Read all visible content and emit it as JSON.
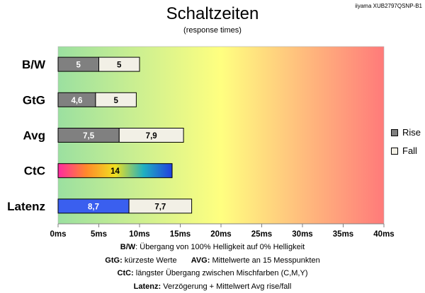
{
  "model": "iiyama XUB2797QSNP-B1",
  "colors": {
    "rise": "#808080",
    "fall": "#f2f0e6",
    "latency_rise": "#3a5fef",
    "background_gradient": [
      "#9be0a0",
      "#ffff80",
      "#ff7a7a"
    ],
    "ctc_gradient": [
      "#ff2aa0",
      "#ff8a2a",
      "#f0e020",
      "#20b0c0",
      "#2040e0"
    ]
  },
  "chart_data": {
    "type": "bar",
    "orientation": "horizontal",
    "stacked": true,
    "title": "Schaltzeiten",
    "subtitle": "(response times)",
    "categories": [
      "B/W",
      "GtG",
      "Avg",
      "CtC",
      "Latenz"
    ],
    "series": [
      {
        "name": "Rise",
        "values": [
          5,
          4.6,
          7.5,
          null,
          8.7
        ],
        "labels": [
          "5",
          "4,6",
          "7,5",
          "",
          "8,7"
        ]
      },
      {
        "name": "Fall",
        "values": [
          5,
          5,
          7.9,
          null,
          7.7
        ],
        "labels": [
          "5",
          "5",
          "7,9",
          "",
          "7,7"
        ]
      }
    ],
    "single": {
      "category": "CtC",
      "value": 14,
      "label": "14"
    },
    "xlim": [
      0,
      40
    ],
    "xticks": [
      "0ms",
      "5ms",
      "10ms",
      "15ms",
      "20ms",
      "25ms",
      "30ms",
      "35ms",
      "40ms"
    ],
    "legend": "right",
    "grid": false
  },
  "footnotes": [
    [
      {
        "bold": "B/W",
        "text": ":  Übergang von 100% Helligkeit auf 0% Helligkeit"
      }
    ],
    [
      {
        "bold": "GtG:",
        "text": " kürzeste  Werte"
      },
      {
        "bold": "AVG:",
        "text": " Mittelwerte  an 15 Messpunkten"
      }
    ],
    [
      {
        "bold": "CtC:",
        "text": " längster Übergang  zwischen Mischfarben  (C,M,Y)"
      }
    ],
    [
      {
        "bold": "Latenz:",
        "text": " Verzögerung  + Mittelwert  Avg rise/fall"
      }
    ]
  ]
}
